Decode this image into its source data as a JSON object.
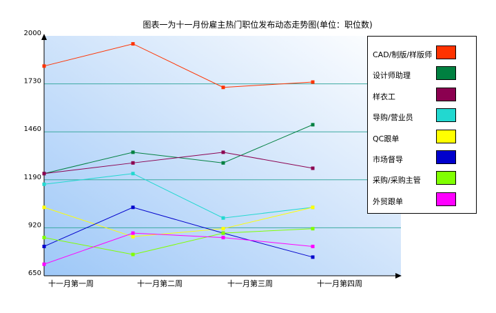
{
  "chart_data": {
    "type": "line",
    "title": "图表一为十一月份雇主热门职位发布动态走势图(单位：职位数)",
    "categories": [
      "十一月第一周",
      "十一月第二周",
      "十一月第三周",
      "十一月第四周"
    ],
    "ylim": [
      650,
      2000
    ],
    "yticks": [
      "2000",
      "1730",
      "1460",
      "1190",
      "920",
      "650"
    ],
    "gridlines": [
      1730,
      1460,
      1190,
      920
    ],
    "legend_position": "right",
    "series": [
      {
        "name": "CAD/制版/样版师",
        "color": "#ff3300",
        "values": [
          1830,
          1955,
          1710,
          1740
        ]
      },
      {
        "name": "设计师助理",
        "color": "#008040",
        "values": [
          1225,
          1345,
          1285,
          1500
        ]
      },
      {
        "name": "样衣工",
        "color": "#8b0050",
        "values": [
          1225,
          1285,
          1345,
          1255
        ]
      },
      {
        "name": "导购/营业员",
        "color": "#22d8d0",
        "values": [
          1165,
          1225,
          975,
          1035
        ]
      },
      {
        "name": "QC跟单",
        "color": "#ffff00",
        "values": [
          1035,
          870,
          915,
          1035
        ]
      },
      {
        "name": "市场督导",
        "color": "#0000cc",
        "values": [
          815,
          1035,
          890,
          755
        ]
      },
      {
        "name": "采购/采购主管",
        "color": "#80ff00",
        "values": [
          865,
          770,
          890,
          915
        ]
      },
      {
        "name": "外贸跟单",
        "color": "#ff00ff",
        "values": [
          715,
          890,
          865,
          815
        ]
      }
    ]
  }
}
